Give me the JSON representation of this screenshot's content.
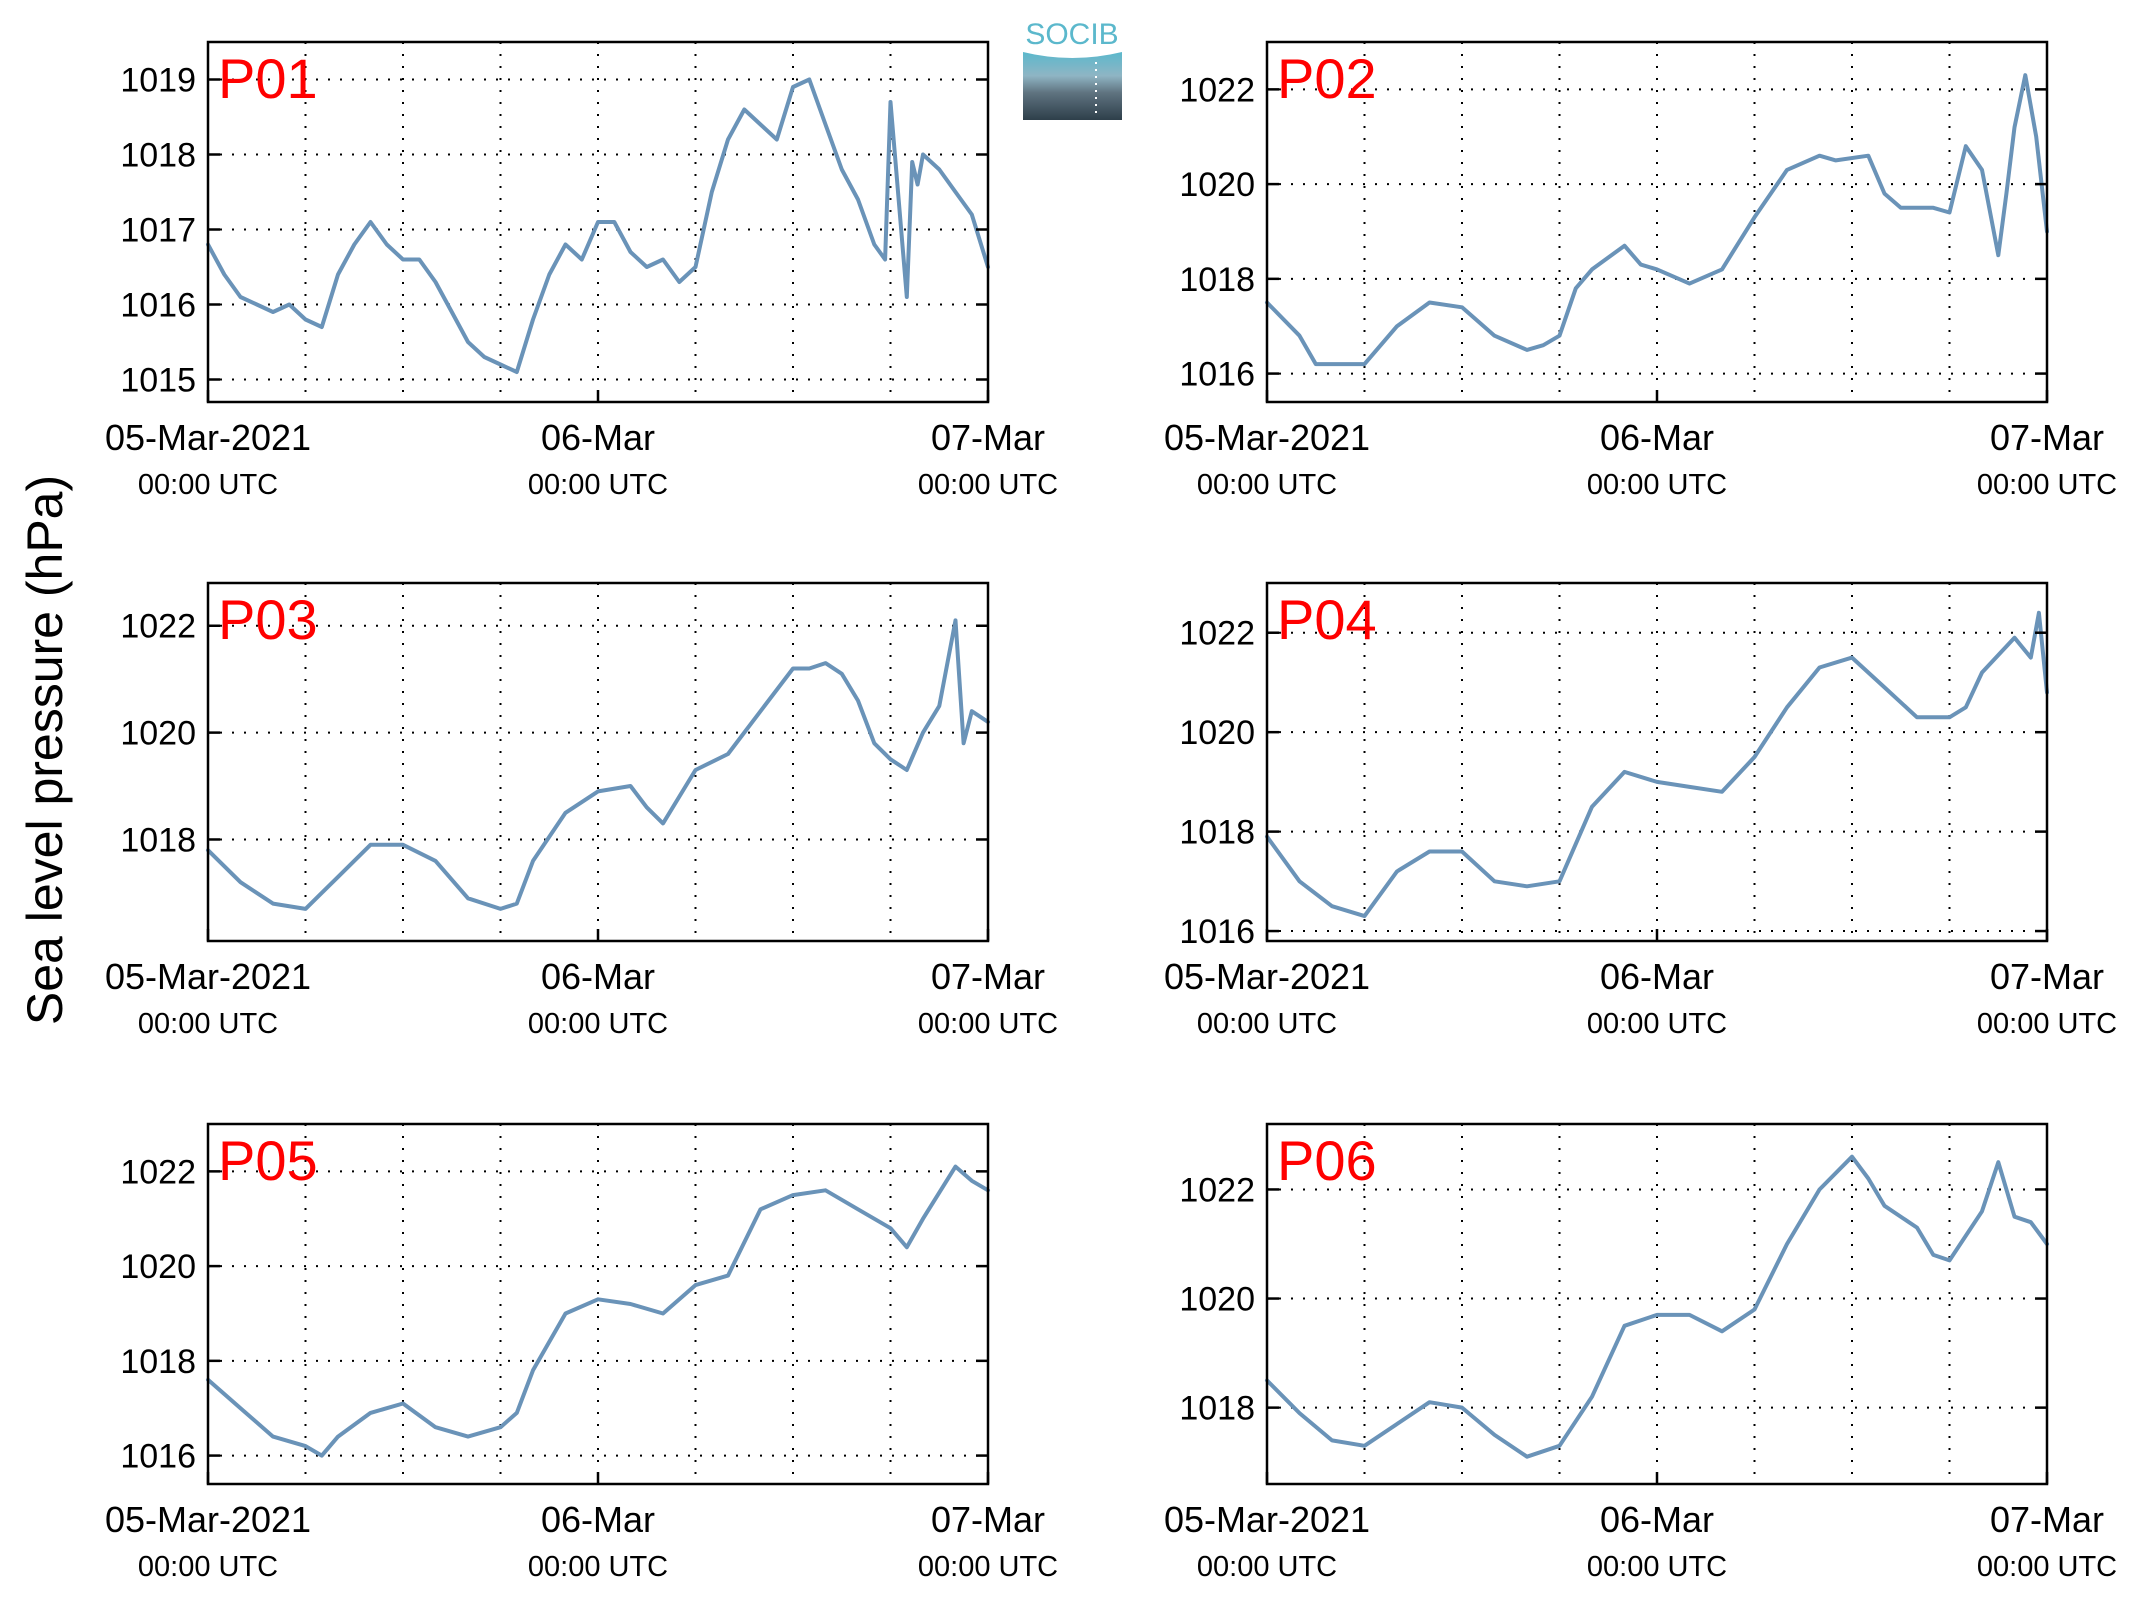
{
  "figure": {
    "ylabel": "Sea level pressure (hPa)",
    "logo_text": "SOCIB"
  },
  "colors": {
    "line": "#6a93b8",
    "panel_label": "#ff0000",
    "axis": "#000000",
    "grid": "#000000",
    "logo_top": "#5bb8cc",
    "logo_bottom": "#2e3f4a"
  },
  "chart_data": [
    {
      "type": "line",
      "title": "P01",
      "x_range": [
        "2021-03-05 00:00",
        "2021-03-07 00:00"
      ],
      "ylim": [
        1014.7,
        1019.5
      ],
      "yticks": [
        1015,
        1016,
        1017,
        1018,
        1019
      ],
      "xticks": [
        {
          "time": "2021-03-05 00:00",
          "label": "05-Mar-2021",
          "sublabel": "00:00 UTC"
        },
        {
          "time": "2021-03-06 00:00",
          "label": "06-Mar",
          "sublabel": "00:00 UTC"
        },
        {
          "time": "2021-03-07 00:00",
          "label": "07-Mar",
          "sublabel": "00:00 UTC"
        }
      ],
      "grid": true,
      "series": [
        {
          "x": [
            "2021-03-05 00:00",
            "2021-03-05 01:00",
            "2021-03-05 02:00",
            "2021-03-05 03:00",
            "2021-03-05 04:00",
            "2021-03-05 05:00",
            "2021-03-05 06:00",
            "2021-03-05 07:00",
            "2021-03-05 08:00",
            "2021-03-05 09:00",
            "2021-03-05 10:00",
            "2021-03-05 11:00",
            "2021-03-05 12:00",
            "2021-03-05 13:00",
            "2021-03-05 14:00",
            "2021-03-05 15:00",
            "2021-03-05 16:00",
            "2021-03-05 17:00",
            "2021-03-05 18:00",
            "2021-03-05 19:00",
            "2021-03-05 20:00",
            "2021-03-05 21:00",
            "2021-03-05 22:00",
            "2021-03-05 23:00",
            "2021-03-06 00:00",
            "2021-03-06 01:00",
            "2021-03-06 02:00",
            "2021-03-06 03:00",
            "2021-03-06 04:00",
            "2021-03-06 05:00",
            "2021-03-06 06:00",
            "2021-03-06 07:00",
            "2021-03-06 08:00",
            "2021-03-06 09:00",
            "2021-03-06 10:00",
            "2021-03-06 11:00",
            "2021-03-06 12:00",
            "2021-03-06 13:00",
            "2021-03-06 14:00",
            "2021-03-06 15:00",
            "2021-03-06 16:00",
            "2021-03-06 17:00",
            "2021-03-06 17:40",
            "2021-03-06 18:00",
            "2021-03-06 19:00",
            "2021-03-06 19:20",
            "2021-03-06 19:40",
            "2021-03-06 20:00",
            "2021-03-06 21:00",
            "2021-03-06 22:00",
            "2021-03-06 23:00",
            "2021-03-07 00:00"
          ],
          "values": [
            1016.8,
            1016.4,
            1016.1,
            1016.0,
            1015.9,
            1016.0,
            1015.8,
            1015.7,
            1016.4,
            1016.8,
            1017.1,
            1016.8,
            1016.6,
            1016.6,
            1016.3,
            1015.9,
            1015.5,
            1015.3,
            1015.2,
            1015.1,
            1015.8,
            1016.4,
            1016.8,
            1016.6,
            1017.1,
            1017.1,
            1016.7,
            1016.5,
            1016.6,
            1016.3,
            1016.5,
            1017.5,
            1018.2,
            1018.6,
            1018.4,
            1018.2,
            1018.9,
            1019.0,
            1018.4,
            1017.8,
            1017.4,
            1016.8,
            1016.6,
            1018.7,
            1016.1,
            1017.9,
            1017.6,
            1018.0,
            1017.8,
            1017.5,
            1017.2,
            1016.5
          ]
        }
      ]
    },
    {
      "type": "line",
      "title": "P02",
      "x_range": [
        "2021-03-05 00:00",
        "2021-03-07 00:00"
      ],
      "ylim": [
        1015.4,
        1023.0
      ],
      "yticks": [
        1016,
        1018,
        1020,
        1022
      ],
      "xticks": [
        {
          "time": "2021-03-05 00:00",
          "label": "05-Mar-2021",
          "sublabel": "00:00 UTC"
        },
        {
          "time": "2021-03-06 00:00",
          "label": "06-Mar",
          "sublabel": "00:00 UTC"
        },
        {
          "time": "2021-03-07 00:00",
          "label": "07-Mar",
          "sublabel": "00:00 UTC"
        }
      ],
      "grid": true,
      "series": [
        {
          "x": [
            "2021-03-05 00:00",
            "2021-03-05 02:00",
            "2021-03-05 03:00",
            "2021-03-05 04:00",
            "2021-03-05 06:00",
            "2021-03-05 08:00",
            "2021-03-05 10:00",
            "2021-03-05 12:00",
            "2021-03-05 14:00",
            "2021-03-05 16:00",
            "2021-03-05 17:00",
            "2021-03-05 18:00",
            "2021-03-05 19:00",
            "2021-03-05 20:00",
            "2021-03-05 22:00",
            "2021-03-05 23:00",
            "2021-03-06 00:00",
            "2021-03-06 02:00",
            "2021-03-06 04:00",
            "2021-03-06 06:00",
            "2021-03-06 08:00",
            "2021-03-06 10:00",
            "2021-03-06 11:00",
            "2021-03-06 13:00",
            "2021-03-06 14:00",
            "2021-03-06 15:00",
            "2021-03-06 17:00",
            "2021-03-06 18:00",
            "2021-03-06 19:00",
            "2021-03-06 20:00",
            "2021-03-06 21:00",
            "2021-03-06 21:30",
            "2021-03-06 22:00",
            "2021-03-06 22:40",
            "2021-03-06 23:20",
            "2021-03-07 00:00"
          ],
          "values": [
            1017.5,
            1016.8,
            1016.2,
            1016.2,
            1016.2,
            1017.0,
            1017.5,
            1017.4,
            1016.8,
            1016.5,
            1016.6,
            1016.8,
            1017.8,
            1018.2,
            1018.7,
            1018.3,
            1018.2,
            1017.9,
            1018.2,
            1019.3,
            1020.3,
            1020.6,
            1020.5,
            1020.6,
            1019.8,
            1019.5,
            1019.5,
            1019.4,
            1020.8,
            1020.3,
            1018.5,
            1019.8,
            1021.2,
            1022.3,
            1021.0,
            1019.0
          ]
        }
      ]
    },
    {
      "type": "line",
      "title": "P03",
      "x_range": [
        "2021-03-05 00:00",
        "2021-03-07 00:00"
      ],
      "ylim": [
        1016.1,
        1022.8
      ],
      "yticks": [
        1018,
        1020,
        1022
      ],
      "xticks": [
        {
          "time": "2021-03-05 00:00",
          "label": "05-Mar-2021",
          "sublabel": "00:00 UTC"
        },
        {
          "time": "2021-03-06 00:00",
          "label": "06-Mar",
          "sublabel": "00:00 UTC"
        },
        {
          "time": "2021-03-07 00:00",
          "label": "07-Mar",
          "sublabel": "00:00 UTC"
        }
      ],
      "grid": true,
      "series": [
        {
          "x": [
            "2021-03-05 00:00",
            "2021-03-05 02:00",
            "2021-03-05 04:00",
            "2021-03-05 06:00",
            "2021-03-05 08:00",
            "2021-03-05 10:00",
            "2021-03-05 12:00",
            "2021-03-05 14:00",
            "2021-03-05 16:00",
            "2021-03-05 18:00",
            "2021-03-05 19:00",
            "2021-03-05 20:00",
            "2021-03-05 22:00",
            "2021-03-06 00:00",
            "2021-03-06 02:00",
            "2021-03-06 03:00",
            "2021-03-06 04:00",
            "2021-03-06 06:00",
            "2021-03-06 08:00",
            "2021-03-06 10:00",
            "2021-03-06 12:00",
            "2021-03-06 13:00",
            "2021-03-06 14:00",
            "2021-03-06 15:00",
            "2021-03-06 16:00",
            "2021-03-06 17:00",
            "2021-03-06 18:00",
            "2021-03-06 19:00",
            "2021-03-06 20:00",
            "2021-03-06 21:00",
            "2021-03-06 22:00",
            "2021-03-06 22:30",
            "2021-03-06 23:00",
            "2021-03-07 00:00"
          ],
          "values": [
            1017.8,
            1017.2,
            1016.8,
            1016.7,
            1017.3,
            1017.9,
            1017.9,
            1017.6,
            1016.9,
            1016.7,
            1016.8,
            1017.6,
            1018.5,
            1018.9,
            1019.0,
            1018.6,
            1018.3,
            1019.3,
            1019.6,
            1020.4,
            1021.2,
            1021.2,
            1021.3,
            1021.1,
            1020.6,
            1019.8,
            1019.5,
            1019.3,
            1020.0,
            1020.5,
            1022.1,
            1019.8,
            1020.4,
            1020.2
          ]
        }
      ]
    },
    {
      "type": "line",
      "title": "P04",
      "x_range": [
        "2021-03-05 00:00",
        "2021-03-07 00:00"
      ],
      "ylim": [
        1015.8,
        1023.0
      ],
      "yticks": [
        1016,
        1018,
        1020,
        1022
      ],
      "xticks": [
        {
          "time": "2021-03-05 00:00",
          "label": "05-Mar-2021",
          "sublabel": "00:00 UTC"
        },
        {
          "time": "2021-03-06 00:00",
          "label": "06-Mar",
          "sublabel": "00:00 UTC"
        },
        {
          "time": "2021-03-07 00:00",
          "label": "07-Mar",
          "sublabel": "00:00 UTC"
        }
      ],
      "grid": true,
      "series": [
        {
          "x": [
            "2021-03-05 00:00",
            "2021-03-05 02:00",
            "2021-03-05 04:00",
            "2021-03-05 06:00",
            "2021-03-05 08:00",
            "2021-03-05 10:00",
            "2021-03-05 12:00",
            "2021-03-05 14:00",
            "2021-03-05 16:00",
            "2021-03-05 18:00",
            "2021-03-05 20:00",
            "2021-03-05 22:00",
            "2021-03-06 00:00",
            "2021-03-06 02:00",
            "2021-03-06 04:00",
            "2021-03-06 06:00",
            "2021-03-06 08:00",
            "2021-03-06 10:00",
            "2021-03-06 12:00",
            "2021-03-06 14:00",
            "2021-03-06 16:00",
            "2021-03-06 18:00",
            "2021-03-06 19:00",
            "2021-03-06 20:00",
            "2021-03-06 22:00",
            "2021-03-06 23:00",
            "2021-03-06 23:30",
            "2021-03-07 00:00"
          ],
          "values": [
            1017.9,
            1017.0,
            1016.5,
            1016.3,
            1017.2,
            1017.6,
            1017.6,
            1017.0,
            1016.9,
            1017.0,
            1018.5,
            1019.2,
            1019.0,
            1018.9,
            1018.8,
            1019.5,
            1020.5,
            1021.3,
            1021.5,
            1020.9,
            1020.3,
            1020.3,
            1020.5,
            1021.2,
            1021.9,
            1021.5,
            1022.4,
            1020.8
          ]
        }
      ]
    },
    {
      "type": "line",
      "title": "P05",
      "x_range": [
        "2021-03-05 00:00",
        "2021-03-07 00:00"
      ],
      "ylim": [
        1015.4,
        1023.0
      ],
      "yticks": [
        1016,
        1018,
        1020,
        1022
      ],
      "xticks": [
        {
          "time": "2021-03-05 00:00",
          "label": "05-Mar-2021",
          "sublabel": "00:00 UTC"
        },
        {
          "time": "2021-03-06 00:00",
          "label": "06-Mar",
          "sublabel": "00:00 UTC"
        },
        {
          "time": "2021-03-07 00:00",
          "label": "07-Mar",
          "sublabel": "00:00 UTC"
        }
      ],
      "grid": true,
      "series": [
        {
          "x": [
            "2021-03-05 00:00",
            "2021-03-05 02:00",
            "2021-03-05 04:00",
            "2021-03-05 06:00",
            "2021-03-05 07:00",
            "2021-03-05 08:00",
            "2021-03-05 10:00",
            "2021-03-05 12:00",
            "2021-03-05 14:00",
            "2021-03-05 16:00",
            "2021-03-05 18:00",
            "2021-03-05 19:00",
            "2021-03-05 20:00",
            "2021-03-05 22:00",
            "2021-03-06 00:00",
            "2021-03-06 02:00",
            "2021-03-06 04:00",
            "2021-03-06 06:00",
            "2021-03-06 08:00",
            "2021-03-06 10:00",
            "2021-03-06 12:00",
            "2021-03-06 14:00",
            "2021-03-06 16:00",
            "2021-03-06 18:00",
            "2021-03-06 19:00",
            "2021-03-06 20:00",
            "2021-03-06 22:00",
            "2021-03-06 23:00",
            "2021-03-07 00:00"
          ],
          "values": [
            1017.6,
            1017.0,
            1016.4,
            1016.2,
            1016.0,
            1016.4,
            1016.9,
            1017.1,
            1016.6,
            1016.4,
            1016.6,
            1016.9,
            1017.8,
            1019.0,
            1019.3,
            1019.2,
            1019.0,
            1019.6,
            1019.8,
            1021.2,
            1021.5,
            1021.6,
            1021.2,
            1020.8,
            1020.4,
            1021.0,
            1022.1,
            1021.8,
            1021.6
          ]
        }
      ]
    },
    {
      "type": "line",
      "title": "P06",
      "x_range": [
        "2021-03-05 00:00",
        "2021-03-07 00:00"
      ],
      "ylim": [
        1016.6,
        1023.2
      ],
      "yticks": [
        1018,
        1020,
        1022
      ],
      "xticks": [
        {
          "time": "2021-03-05 00:00",
          "label": "05-Mar-2021",
          "sublabel": "00:00 UTC"
        },
        {
          "time": "2021-03-06 00:00",
          "label": "06-Mar",
          "sublabel": "00:00 UTC"
        },
        {
          "time": "2021-03-07 00:00",
          "label": "07-Mar",
          "sublabel": "00:00 UTC"
        }
      ],
      "grid": true,
      "series": [
        {
          "x": [
            "2021-03-05 00:00",
            "2021-03-05 02:00",
            "2021-03-05 04:00",
            "2021-03-05 06:00",
            "2021-03-05 08:00",
            "2021-03-05 10:00",
            "2021-03-05 12:00",
            "2021-03-05 14:00",
            "2021-03-05 16:00",
            "2021-03-05 18:00",
            "2021-03-05 20:00",
            "2021-03-05 22:00",
            "2021-03-06 00:00",
            "2021-03-06 02:00",
            "2021-03-06 04:00",
            "2021-03-06 06:00",
            "2021-03-06 08:00",
            "2021-03-06 10:00",
            "2021-03-06 12:00",
            "2021-03-06 13:00",
            "2021-03-06 14:00",
            "2021-03-06 16:00",
            "2021-03-06 17:00",
            "2021-03-06 18:00",
            "2021-03-06 20:00",
            "2021-03-06 21:00",
            "2021-03-06 22:00",
            "2021-03-06 23:00",
            "2021-03-07 00:00"
          ],
          "values": [
            1018.5,
            1017.9,
            1017.4,
            1017.3,
            1017.7,
            1018.1,
            1018.0,
            1017.5,
            1017.1,
            1017.3,
            1018.2,
            1019.5,
            1019.7,
            1019.7,
            1019.4,
            1019.8,
            1021.0,
            1022.0,
            1022.6,
            1022.2,
            1021.7,
            1021.3,
            1020.8,
            1020.7,
            1021.6,
            1022.5,
            1021.5,
            1021.4,
            1021.0
          ]
        }
      ]
    }
  ]
}
